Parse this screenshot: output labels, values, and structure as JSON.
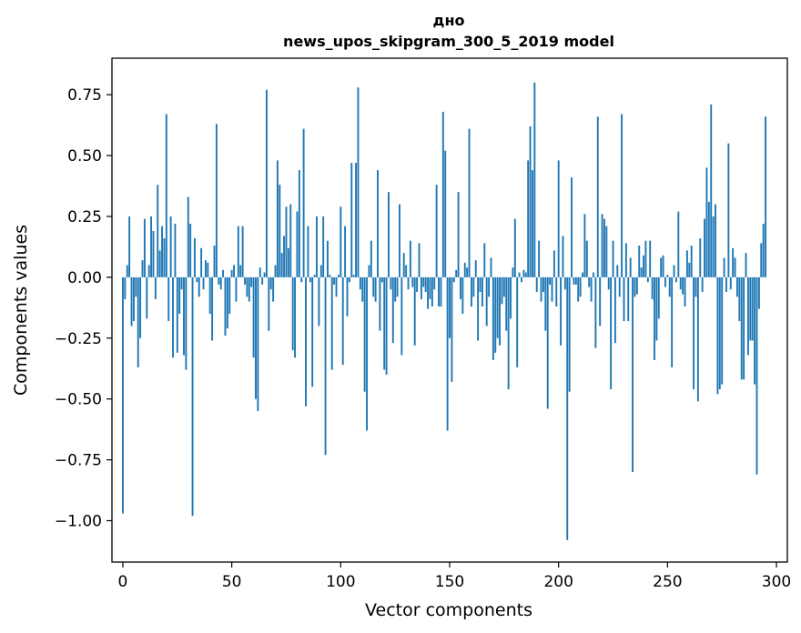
{
  "chart_data": {
    "type": "bar",
    "title": "дно",
    "subtitle": "news_upos_skipgram_300_5_2019 model",
    "xlabel": "Vector components",
    "ylabel": "Components values",
    "xlim": [
      -5,
      305
    ],
    "ylim": [
      -1.17,
      0.9
    ],
    "xticks": [
      0,
      50,
      100,
      150,
      200,
      250,
      300
    ],
    "xtick_labels": [
      "0",
      "50",
      "100",
      "150",
      "200",
      "250",
      "300"
    ],
    "yticks": [
      -1.0,
      -0.75,
      -0.5,
      -0.25,
      0.0,
      0.25,
      0.5,
      0.75
    ],
    "ytick_labels": [
      "−1.00",
      "−0.75",
      "−0.50",
      "−0.25",
      "0.00",
      "0.25",
      "0.50",
      "0.75"
    ],
    "grid": false,
    "bar_color": "#1f77b4",
    "values": [
      -0.97,
      -0.09,
      0.05,
      0.25,
      -0.2,
      -0.18,
      -0.08,
      -0.37,
      -0.25,
      0.07,
      0.24,
      -0.17,
      0.05,
      0.25,
      0.19,
      -0.09,
      0.38,
      0.11,
      0.21,
      0.16,
      0.67,
      -0.18,
      0.25,
      -0.33,
      0.22,
      -0.31,
      -0.15,
      -0.05,
      -0.32,
      -0.38,
      0.33,
      0.22,
      -0.98,
      0.16,
      -0.02,
      -0.08,
      0.12,
      -0.05,
      0.07,
      0.06,
      -0.15,
      -0.26,
      0.13,
      0.63,
      -0.03,
      -0.05,
      0.03,
      -0.24,
      -0.21,
      -0.15,
      0.03,
      0.05,
      -0.1,
      0.21,
      0.05,
      0.21,
      -0.03,
      -0.08,
      -0.1,
      -0.04,
      -0.33,
      -0.5,
      -0.55,
      0.04,
      -0.03,
      0.02,
      0.77,
      -0.22,
      -0.05,
      -0.1,
      0.05,
      0.48,
      0.38,
      0.1,
      0.17,
      0.29,
      0.12,
      0.3,
      -0.3,
      -0.33,
      0.27,
      0.44,
      -0.02,
      0.61,
      -0.53,
      0.21,
      -0.02,
      -0.45,
      0.01,
      0.25,
      -0.2,
      0.05,
      0.25,
      -0.73,
      0.15,
      0.01,
      -0.38,
      -0.03,
      -0.08,
      0.01,
      0.29,
      -0.36,
      0.21,
      -0.16,
      -0.02,
      0.47,
      0.01,
      0.47,
      0.78,
      -0.05,
      -0.1,
      -0.47,
      -0.63,
      0.05,
      0.15,
      -0.08,
      -0.1,
      0.44,
      -0.22,
      -0.02,
      -0.38,
      -0.4,
      0.35,
      -0.05,
      -0.27,
      -0.1,
      -0.08,
      0.3,
      -0.32,
      0.1,
      0.05,
      -0.05,
      0.15,
      -0.04,
      -0.28,
      -0.06,
      0.14,
      -0.09,
      -0.04,
      -0.06,
      -0.13,
      -0.09,
      -0.12,
      -0.05,
      0.38,
      -0.12,
      -0.12,
      0.68,
      0.52,
      -0.63,
      -0.25,
      -0.43,
      -0.02,
      0.03,
      0.35,
      -0.09,
      -0.15,
      0.06,
      0.04,
      0.61,
      -0.12,
      -0.08,
      0.07,
      -0.26,
      -0.06,
      -0.12,
      0.14,
      -0.2,
      -0.08,
      0.08,
      -0.34,
      -0.31,
      -0.25,
      -0.28,
      -0.11,
      -0.08,
      -0.22,
      -0.46,
      -0.17,
      0.04,
      0.24,
      -0.37,
      0.02,
      -0.02,
      0.03,
      0.02,
      0.48,
      0.62,
      0.44,
      0.8,
      -0.06,
      0.15,
      -0.1,
      -0.06,
      -0.22,
      -0.54,
      -0.03,
      -0.1,
      0.11,
      -0.12,
      0.48,
      -0.28,
      0.17,
      -0.05,
      -1.08,
      -0.47,
      0.41,
      -0.03,
      -0.03,
      -0.1,
      -0.08,
      0.02,
      0.26,
      0.15,
      -0.04,
      -0.1,
      0.02,
      -0.29,
      0.66,
      -0.2,
      0.26,
      0.24,
      0.21,
      -0.05,
      -0.46,
      0.15,
      -0.27,
      0.05,
      -0.08,
      0.67,
      -0.18,
      0.14,
      -0.18,
      0.08,
      -0.8,
      -0.08,
      -0.07,
      0.13,
      0.04,
      0.09,
      0.15,
      -0.02,
      0.15,
      -0.09,
      -0.34,
      -0.26,
      -0.17,
      0.08,
      0.09,
      -0.04,
      0.01,
      -0.08,
      -0.37,
      0.05,
      -0.02,
      0.27,
      -0.05,
      -0.07,
      -0.12,
      0.11,
      0.06,
      0.13,
      -0.46,
      -0.08,
      -0.51,
      0.16,
      -0.06,
      0.24,
      0.45,
      0.31,
      0.71,
      0.25,
      0.3,
      -0.48,
      -0.46,
      -0.44,
      0.08,
      -0.06,
      0.55,
      -0.05,
      0.12,
      0.08,
      -0.08,
      -0.18,
      -0.42,
      -0.42,
      0.1,
      -0.32,
      -0.26,
      -0.26,
      -0.44,
      -0.81,
      -0.13,
      0.14,
      0.22,
      0.66
    ]
  }
}
